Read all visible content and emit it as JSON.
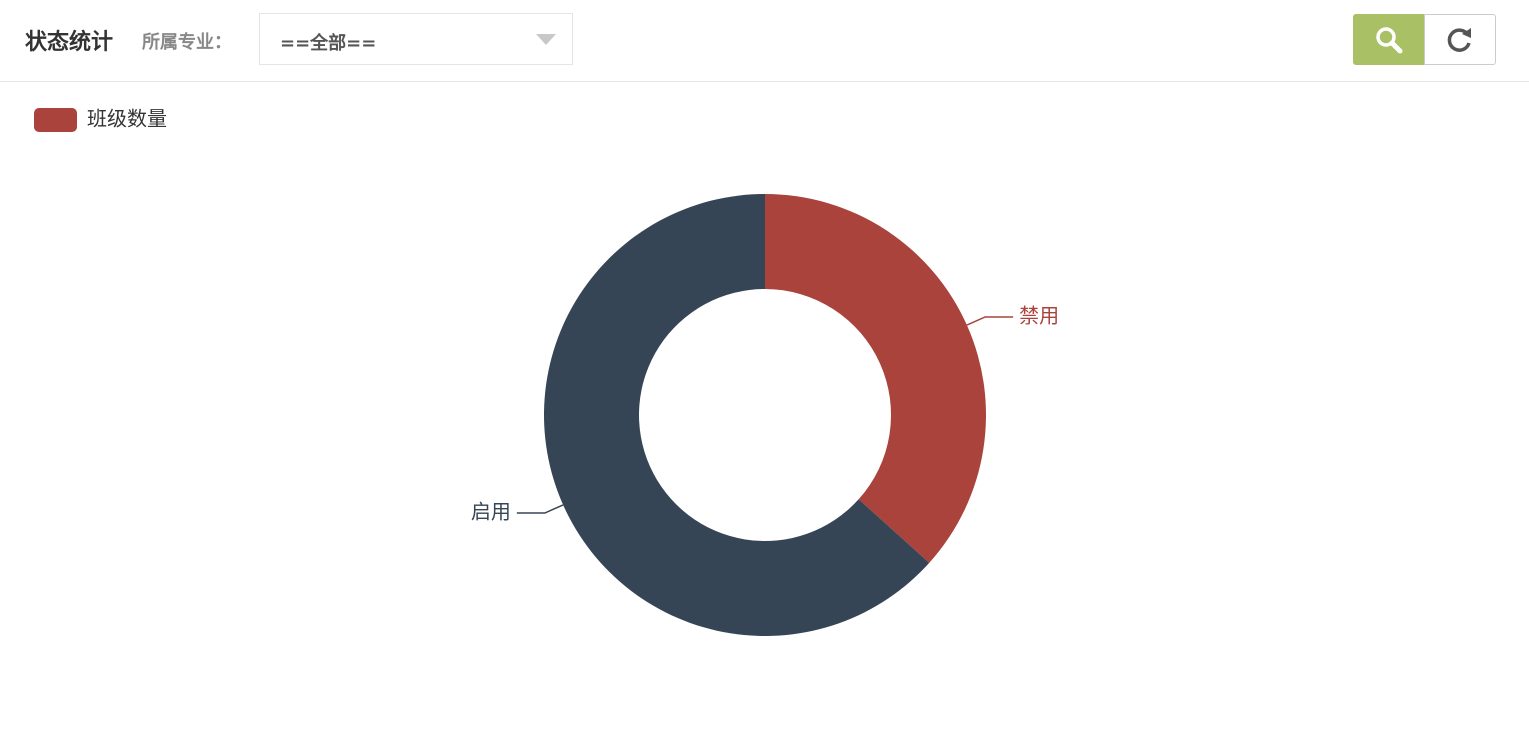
{
  "header": {
    "title": "状态统计",
    "filter_label": "所属专业：",
    "filter_value": "==全部=="
  },
  "chart_data": {
    "type": "pie",
    "donut": true,
    "legend": "top-left",
    "categories": [
      "禁用",
      "启用"
    ],
    "colors": [
      "#a9433b",
      "#364555"
    ],
    "series": [
      {
        "name": "班级数量",
        "color": "#a9433b",
        "values": [
          11,
          19
        ]
      }
    ]
  }
}
